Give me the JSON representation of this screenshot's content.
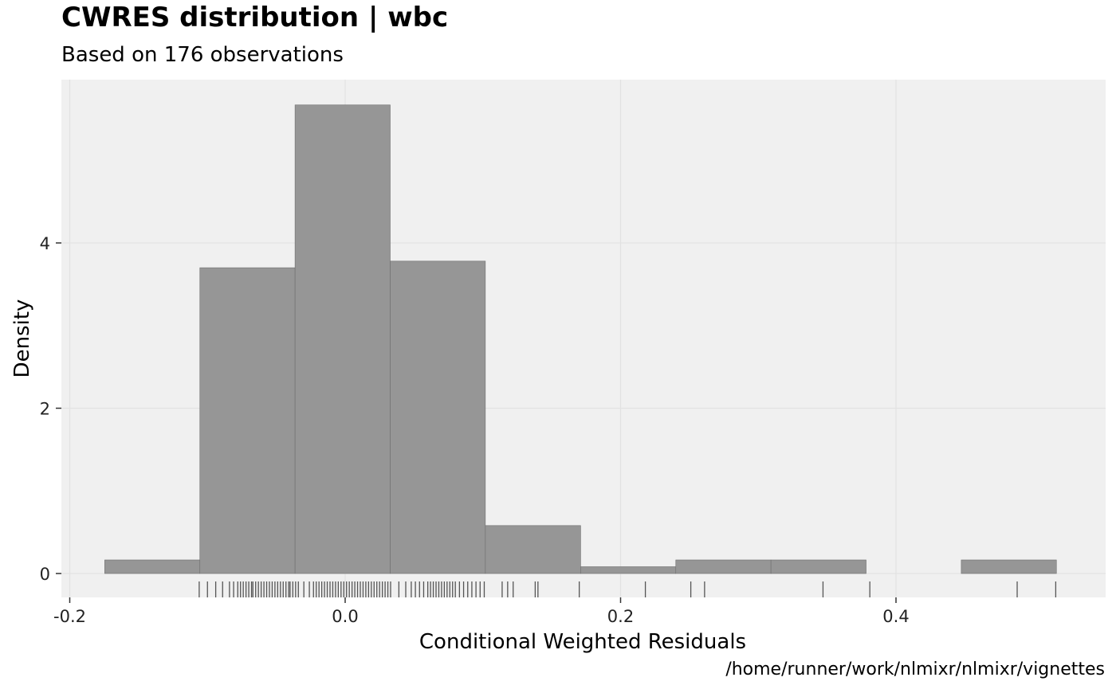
{
  "chart_data": {
    "type": "bar",
    "title": "CWRES distribution | wbc",
    "subtitle": "Based on 176 observations",
    "caption": "/home/runner/work/nlmixr/nlmixr/vignettes",
    "xlabel": "Conditional Weighted Residuals",
    "ylabel": "Density",
    "xlim": [
      -0.2,
      0.55
    ],
    "ylim": [
      0,
      5.9
    ],
    "x_ticks": [
      -0.2,
      0.0,
      0.2,
      0.4
    ],
    "x_tick_labels": [
      "-0.2",
      "0.0",
      "0.2",
      "0.4"
    ],
    "y_ticks": [
      0,
      2,
      4
    ],
    "y_tick_labels": [
      "0",
      "2",
      "4"
    ],
    "grid": true,
    "colors": {
      "panel": "#f0f0f0",
      "bar_fill": "#969696",
      "bar_edge": "#6e6e6e",
      "grid": "#e2e2e2",
      "rug": "#555555"
    },
    "bins": [
      {
        "x0": -0.1746,
        "x1": -0.1055,
        "density": 0.164
      },
      {
        "x0": -0.1055,
        "x1": -0.0364,
        "density": 3.7
      },
      {
        "x0": -0.0364,
        "x1": 0.0327,
        "density": 5.67
      },
      {
        "x0": 0.0327,
        "x1": 0.1018,
        "density": 3.78
      },
      {
        "x0": 0.1018,
        "x1": 0.171,
        "density": 0.58
      },
      {
        "x0": 0.171,
        "x1": 0.2401,
        "density": 0.082
      },
      {
        "x0": 0.2401,
        "x1": 0.3092,
        "density": 0.164
      },
      {
        "x0": 0.3092,
        "x1": 0.3783,
        "density": 0.164
      },
      {
        "x0": 0.3783,
        "x1": 0.4474,
        "density": 0.0
      },
      {
        "x0": 0.4474,
        "x1": 0.5165,
        "density": 0.164
      }
    ],
    "rug": [
      -0.106,
      -0.1,
      -0.094,
      -0.089,
      -0.084,
      -0.081,
      -0.078,
      -0.076,
      -0.074,
      -0.072,
      -0.07,
      -0.068,
      -0.067,
      -0.065,
      -0.063,
      -0.061,
      -0.059,
      -0.057,
      -0.055,
      -0.053,
      -0.051,
      -0.049,
      -0.047,
      -0.045,
      -0.043,
      -0.041,
      -0.04,
      -0.038,
      -0.036,
      -0.034,
      -0.03,
      -0.026,
      -0.023,
      -0.021,
      -0.019,
      -0.017,
      -0.015,
      -0.013,
      -0.011,
      -0.009,
      -0.007,
      -0.005,
      -0.003,
      -0.001,
      0.001,
      0.003,
      0.005,
      0.007,
      0.009,
      0.011,
      0.013,
      0.015,
      0.017,
      0.019,
      0.021,
      0.023,
      0.025,
      0.027,
      0.029,
      0.031,
      0.033,
      0.039,
      0.044,
      0.048,
      0.051,
      0.054,
      0.057,
      0.06,
      0.062,
      0.064,
      0.066,
      0.068,
      0.07,
      0.072,
      0.074,
      0.076,
      0.078,
      0.08,
      0.083,
      0.086,
      0.089,
      0.092,
      0.095,
      0.098,
      0.101,
      0.114,
      0.118,
      0.122,
      0.138,
      0.14,
      0.17,
      0.218,
      0.251,
      0.261,
      0.347,
      0.381,
      0.488,
      0.516
    ],
    "rug_count": 176
  }
}
